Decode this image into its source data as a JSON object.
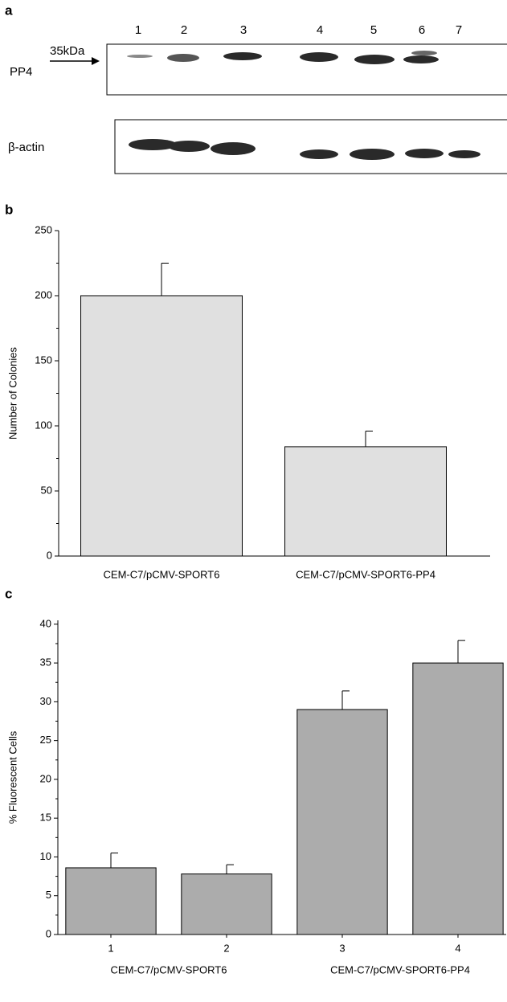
{
  "blot": {
    "panel_label": "a",
    "lanes": [
      "1",
      "2",
      "3",
      "4",
      "5",
      "6",
      "7"
    ],
    "marker": "35kDa",
    "rows": [
      "PP4",
      "β-actin"
    ]
  },
  "chart_data": [
    {
      "type": "bar",
      "panel_label": "b",
      "ylabel": "Number of Colonies",
      "categories": [
        "CEM-C7/pCMV-SPORT6",
        "CEM-C7/pCMV-SPORT6-PP4"
      ],
      "series": [
        {
          "color": "#e0e0e0",
          "values": [
            200,
            84
          ],
          "errors": [
            25,
            12
          ]
        }
      ],
      "ylim": [
        0,
        250
      ],
      "yticks": [
        0,
        50,
        100,
        150,
        200,
        250
      ],
      "minor_yticks": [
        25,
        75,
        125,
        175,
        225
      ]
    },
    {
      "type": "bar",
      "panel_label": "c",
      "ylabel": "% Fluorescent Cells",
      "categories": [
        "1",
        "2",
        "3",
        "4"
      ],
      "group_labels": [
        "CEM-C7/pCMV-SPORT6",
        "CEM-C7/pCMV-SPORT6-PP4"
      ],
      "series": [
        {
          "color": "#acacac",
          "values": [
            8.6,
            7.8,
            29,
            35
          ],
          "errors": [
            1.9,
            1.2,
            2.4,
            2.9
          ]
        }
      ],
      "ylim": [
        0,
        40.5
      ],
      "yticks": [
        0,
        5,
        10,
        15,
        20,
        25,
        30,
        35,
        40
      ],
      "minor_yticks": [
        2.5,
        7.5,
        12.5,
        17.5,
        22.5,
        27.5,
        32.5,
        37.5
      ]
    }
  ]
}
